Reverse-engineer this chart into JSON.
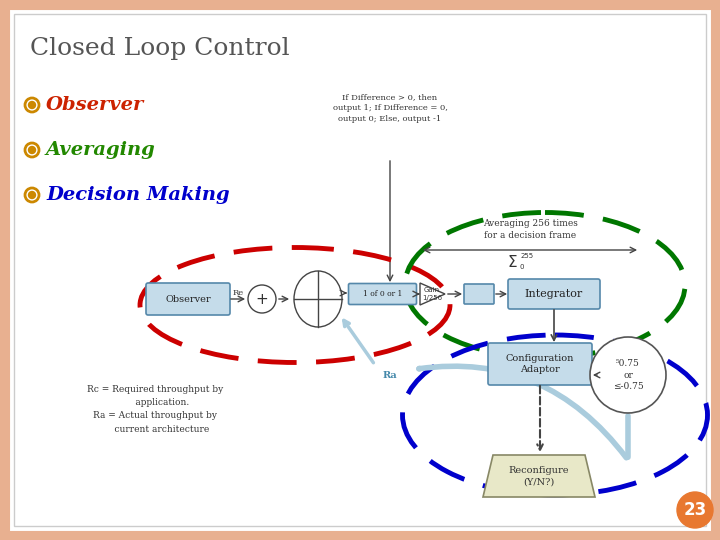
{
  "title": "Closed Loop Control",
  "bullet_items": [
    "Observer",
    "Averaging",
    "Decision Making"
  ],
  "bullet_colors": [
    "#cc2200",
    "#228800",
    "#0000cc"
  ],
  "bullet_symbol_color": "#cc8800",
  "slide_bg": "#ffffff",
  "slide_border_color": "#d4956e",
  "page_number": "23",
  "page_num_bg": "#e87830",
  "cloud_text": "If Difference > 0, then\noutput 1; If Difference = 0,\noutput 0; Else, output -1",
  "avg_label": "Averaging 256 times\nfor a decision frame",
  "rc_ra_text": "Rc = Required throughput by\n     application.\nRa = Actual throughput by\n     current architecture",
  "observer_box": "Observer",
  "integrator_box": "Integrator",
  "config_box": "Configuration\nAdaptor",
  "reconfig_box": "Reconfigure\n(Y/N?)",
  "threshold_text": "⁵0.75\nor\n≤-0.75",
  "gain_label": "Gain\n1/256",
  "re_label": "Re",
  "ra_label": "Ra",
  "sigma_top": "255",
  "sigma_bot": "0",
  "one_of": "1 of 0 or 1"
}
